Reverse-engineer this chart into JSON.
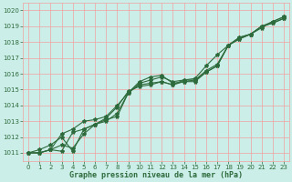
{
  "xlabel": "Graphe pression niveau de la mer (hPa)",
  "bg_color": "#cceee8",
  "plot_bg_color": "#cceee8",
  "grid_color_major": "#f0a0a0",
  "grid_color_minor": "#e8d0d0",
  "line_color": "#2d6b3c",
  "xlim_left": -0.5,
  "xlim_right": 23.5,
  "ylim": [
    1010.5,
    1020.5
  ],
  "yticks": [
    1011,
    1012,
    1013,
    1014,
    1015,
    1016,
    1017,
    1018,
    1019,
    1020
  ],
  "xticks": [
    0,
    1,
    2,
    3,
    4,
    5,
    6,
    7,
    8,
    9,
    10,
    11,
    12,
    13,
    14,
    15,
    16,
    17,
    18,
    19,
    20,
    21,
    22,
    23
  ],
  "line1": [
    1011.0,
    1011.0,
    1011.2,
    1011.5,
    1011.3,
    1012.2,
    1012.8,
    1013.1,
    1013.3,
    1014.8,
    1015.4,
    1015.6,
    1015.8,
    1015.5,
    1015.6,
    1015.6,
    1016.1,
    1016.5,
    1017.8,
    1018.3,
    1018.5,
    1019.0,
    1019.2,
    1019.5
  ],
  "line2": [
    1011.0,
    1011.0,
    1011.2,
    1011.1,
    1012.3,
    1012.5,
    1012.8,
    1013.2,
    1013.9,
    1014.9,
    1015.2,
    1015.3,
    1015.5,
    1015.3,
    1015.5,
    1015.5,
    1016.1,
    1016.5,
    1017.8,
    1018.3,
    1018.5,
    1019.0,
    1019.2,
    1019.5
  ],
  "line3": [
    1011.0,
    1011.0,
    1011.2,
    1012.2,
    1012.5,
    1013.0,
    1013.1,
    1013.3,
    1014.0,
    1014.8,
    1015.3,
    1015.4,
    1015.5,
    1015.3,
    1015.6,
    1015.7,
    1016.5,
    1017.2,
    1017.8,
    1018.2,
    1018.5,
    1018.9,
    1019.3,
    1019.6
  ],
  "line4": [
    1011.0,
    1011.2,
    1011.5,
    1012.0,
    1011.1,
    1012.5,
    1012.8,
    1013.0,
    1013.5,
    1014.8,
    1015.5,
    1015.8,
    1015.9,
    1015.4,
    1015.5,
    1015.6,
    1016.2,
    1016.6,
    1017.8,
    1018.2,
    1018.5,
    1019.0,
    1019.3,
    1019.6
  ],
  "tick_fontsize": 5,
  "xlabel_fontsize": 6,
  "tick_color": "#2d6b3c",
  "xlabel_color": "#2d6b3c"
}
